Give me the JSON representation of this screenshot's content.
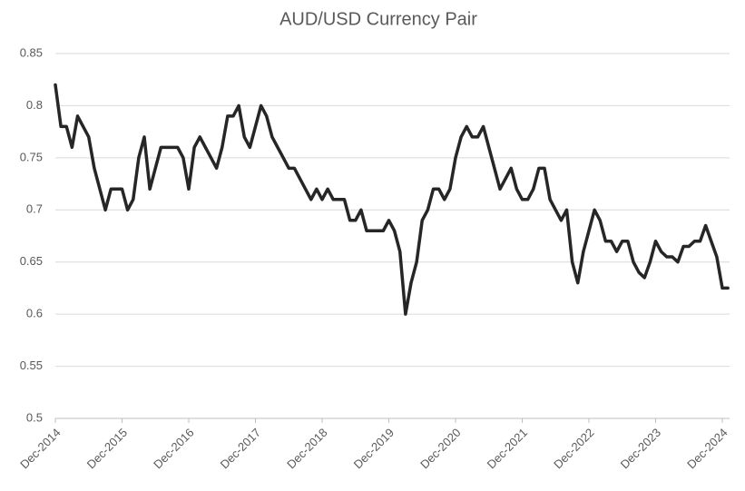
{
  "chart_data": {
    "type": "line",
    "title": "AUD/USD Currency Pair",
    "categories": [
      "Dec-2014",
      null,
      null,
      null,
      null,
      null,
      null,
      null,
      null,
      null,
      null,
      null,
      "Dec-2015",
      null,
      null,
      null,
      null,
      null,
      null,
      null,
      null,
      null,
      null,
      null,
      "Dec-2016",
      null,
      null,
      null,
      null,
      null,
      null,
      null,
      null,
      null,
      null,
      null,
      "Dec-2017",
      null,
      null,
      null,
      null,
      null,
      null,
      null,
      null,
      null,
      null,
      null,
      "Dec-2018",
      null,
      null,
      null,
      null,
      null,
      null,
      null,
      null,
      null,
      null,
      null,
      "Dec-2019",
      null,
      null,
      null,
      null,
      null,
      null,
      null,
      null,
      null,
      null,
      null,
      "Dec-2020",
      null,
      null,
      null,
      null,
      null,
      null,
      null,
      null,
      null,
      null,
      null,
      "Dec-2021",
      null,
      null,
      null,
      null,
      null,
      null,
      null,
      null,
      null,
      null,
      null,
      "Dec-2022",
      null,
      null,
      null,
      null,
      null,
      null,
      null,
      null,
      null,
      null,
      null,
      "Dec-2023",
      null,
      null,
      null,
      null,
      null,
      null,
      null,
      null,
      null,
      null,
      null,
      "Dec-2024",
      null
    ],
    "values": [
      0.82,
      0.78,
      0.78,
      0.76,
      0.79,
      0.78,
      0.77,
      0.74,
      0.72,
      0.7,
      0.72,
      0.72,
      0.72,
      0.7,
      0.71,
      0.75,
      0.77,
      0.72,
      0.74,
      0.76,
      0.76,
      0.76,
      0.76,
      0.75,
      0.72,
      0.76,
      0.77,
      0.76,
      0.75,
      0.74,
      0.76,
      0.79,
      0.79,
      0.8,
      0.77,
      0.76,
      0.78,
      0.8,
      0.79,
      0.77,
      0.76,
      0.75,
      0.74,
      0.74,
      0.73,
      0.72,
      0.71,
      0.72,
      0.71,
      0.72,
      0.71,
      0.71,
      0.71,
      0.69,
      0.69,
      0.7,
      0.68,
      0.68,
      0.68,
      0.68,
      0.69,
      0.68,
      0.66,
      0.6,
      0.63,
      0.65,
      0.69,
      0.7,
      0.72,
      0.72,
      0.71,
      0.72,
      0.75,
      0.77,
      0.78,
      0.77,
      0.77,
      0.78,
      0.76,
      0.74,
      0.72,
      0.73,
      0.74,
      0.72,
      0.71,
      0.71,
      0.72,
      0.74,
      0.74,
      0.71,
      0.7,
      0.69,
      0.7,
      0.65,
      0.63,
      0.66,
      0.68,
      0.7,
      0.69,
      0.67,
      0.67,
      0.66,
      0.67,
      0.67,
      0.65,
      0.64,
      0.635,
      0.65,
      0.67,
      0.66,
      0.655,
      0.655,
      0.65,
      0.665,
      0.665,
      0.67,
      0.67,
      0.685,
      0.67,
      0.655,
      0.625,
      0.625
    ],
    "color": "#262626",
    "ylim": [
      0.5,
      0.85
    ],
    "yticks": [
      0.5,
      0.55,
      0.6,
      0.65,
      0.7,
      0.75,
      0.8,
      0.85
    ],
    "grid": true
  }
}
